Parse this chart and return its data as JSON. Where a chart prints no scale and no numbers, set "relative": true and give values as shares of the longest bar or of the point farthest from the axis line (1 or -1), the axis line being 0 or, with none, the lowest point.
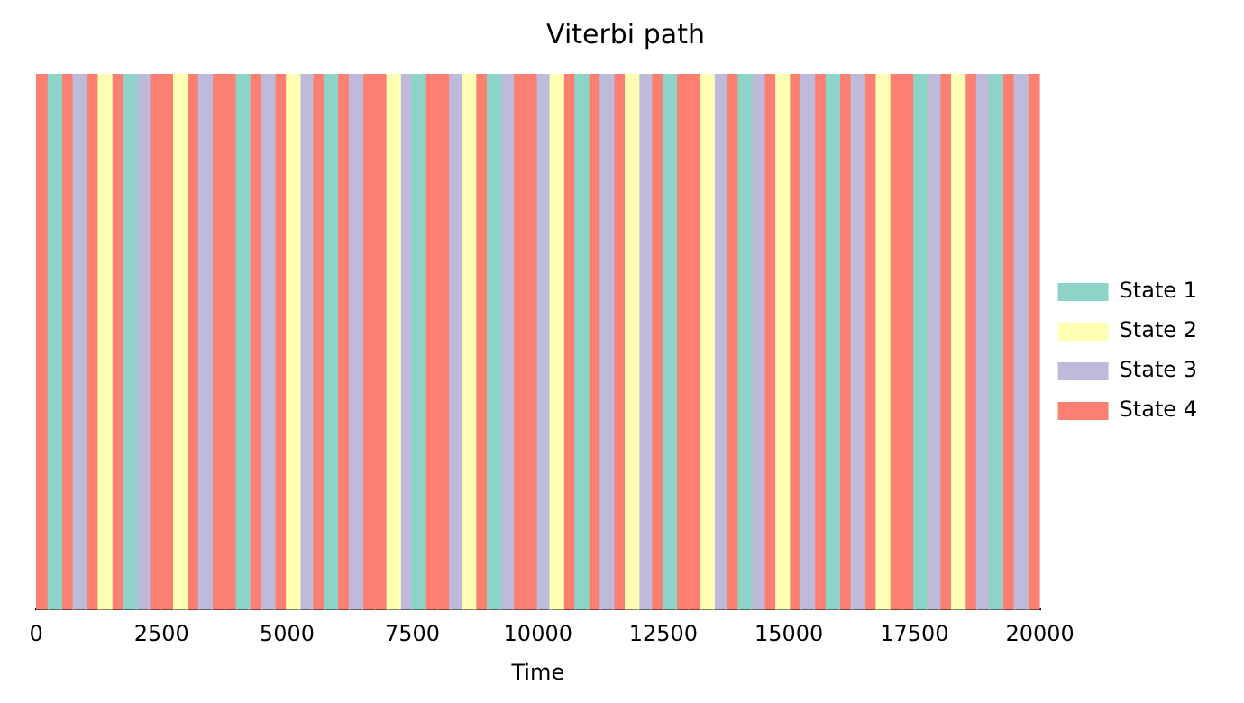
{
  "chart_data": {
    "type": "bar",
    "title": "Viterbi path",
    "xlabel": "Time",
    "relative": true,
    "xlim": [
      0,
      20000
    ],
    "xticks": [
      0,
      2500,
      5000,
      7500,
      10000,
      12500,
      15000,
      17500,
      20000
    ],
    "grid": false,
    "legend": "right",
    "tick_labels": "x",
    "series": [
      {
        "name": "State 1",
        "color": "#8dd3c7",
        "x": [
          375,
          1875,
          4125,
          5875,
          7625,
          9125,
          10875,
          12625,
          14125,
          15875,
          17625,
          19125
        ],
        "values": [
          1,
          1,
          1,
          1,
          1,
          1,
          1,
          1,
          1,
          1,
          1,
          1
        ]
      },
      {
        "name": "State 2",
        "color": "#ffffb3",
        "x": [
          1375,
          2875,
          5125,
          7125,
          8625,
          10375,
          11875,
          13375,
          14875,
          16875,
          18375
        ],
        "values": [
          1,
          1,
          1,
          1,
          1,
          1,
          1,
          1,
          1,
          1,
          1
        ]
      },
      {
        "name": "State 3",
        "color": "#bebada",
        "x": [
          875,
          2125,
          3375,
          4625,
          5375,
          6375,
          7375,
          8375,
          9375,
          10125,
          11375,
          12125,
          13625,
          14375,
          15375,
          16375,
          17875,
          18875,
          19625
        ],
        "values": [
          1,
          1,
          1,
          1,
          1,
          1,
          1,
          1,
          1,
          1,
          1,
          1,
          1,
          1,
          1,
          1,
          1,
          1,
          1
        ]
      },
      {
        "name": "State 4",
        "color": "#fb8072",
        "x": [
          125,
          625,
          1125,
          1625,
          2375,
          2625,
          3125,
          3625,
          3875,
          4375,
          4875,
          5625,
          6125,
          6625,
          6875,
          7875,
          8125,
          8875,
          9625,
          9875,
          10625,
          11125,
          11625,
          12375,
          12875,
          13125,
          13875,
          14625,
          15125,
          15625,
          16125,
          16625,
          17125,
          17375,
          18125,
          18625,
          19375,
          19875
        ],
        "values": [
          1,
          1,
          1,
          1,
          1,
          1,
          1,
          1,
          1,
          1,
          1,
          1,
          1,
          1,
          1,
          1,
          1,
          1,
          1,
          1,
          1,
          1,
          1,
          1,
          1,
          1,
          1,
          1,
          1,
          1,
          1,
          1,
          1,
          1,
          1,
          1,
          1,
          1
        ]
      }
    ]
  }
}
